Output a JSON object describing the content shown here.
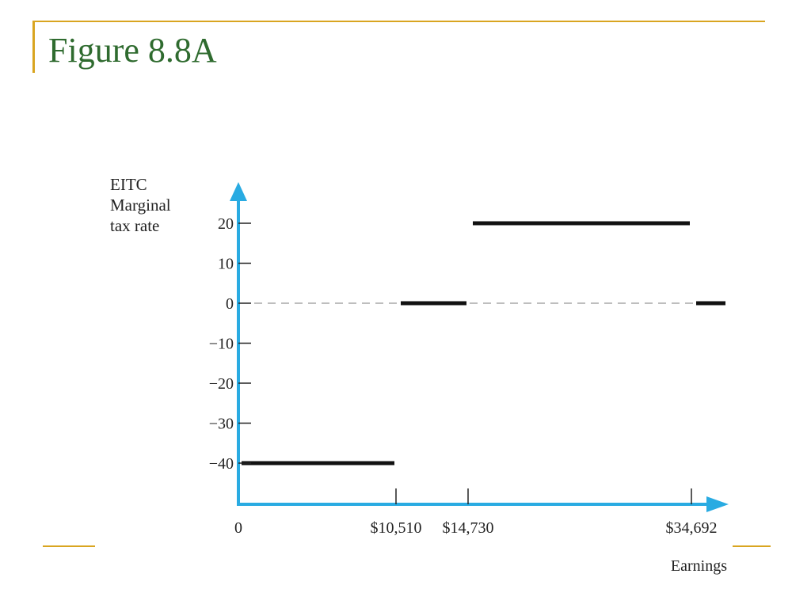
{
  "slide": {
    "title": "Figure 8.8A"
  },
  "chart_data": {
    "type": "line",
    "title": "",
    "ylabel_lines": [
      "EITC",
      "Marginal",
      "tax rate"
    ],
    "xlabel": "Earnings",
    "x_ticks": [
      {
        "value": 0,
        "label": "0"
      },
      {
        "value": 10510,
        "label": "$10,510"
      },
      {
        "value": 14730,
        "label": "$14,730"
      },
      {
        "value": 34692,
        "label": "$34,692"
      }
    ],
    "y_ticks": [
      {
        "value": 20,
        "label": "20"
      },
      {
        "value": 10,
        "label": "10"
      },
      {
        "value": 0,
        "label": "0"
      },
      {
        "value": -10,
        "label": "−10"
      },
      {
        "value": -20,
        "label": "−20"
      },
      {
        "value": -30,
        "label": "−30"
      },
      {
        "value": -40,
        "label": "−40"
      }
    ],
    "series": [
      {
        "segments": [
          {
            "x_start": 0,
            "x_end": 10510,
            "y": -40
          },
          {
            "x_start": 10510,
            "x_end": 14730,
            "y": 0
          },
          {
            "x_start": 14730,
            "x_end": 34692,
            "y": 20
          },
          {
            "x_start": 34692,
            "x_end": 37500,
            "y": 0
          }
        ]
      }
    ],
    "zero_line": "dashed",
    "grid": false,
    "colors": {
      "axis": "#29abe2",
      "series": "#111111",
      "zero_line": "#a8a8a8"
    }
  }
}
